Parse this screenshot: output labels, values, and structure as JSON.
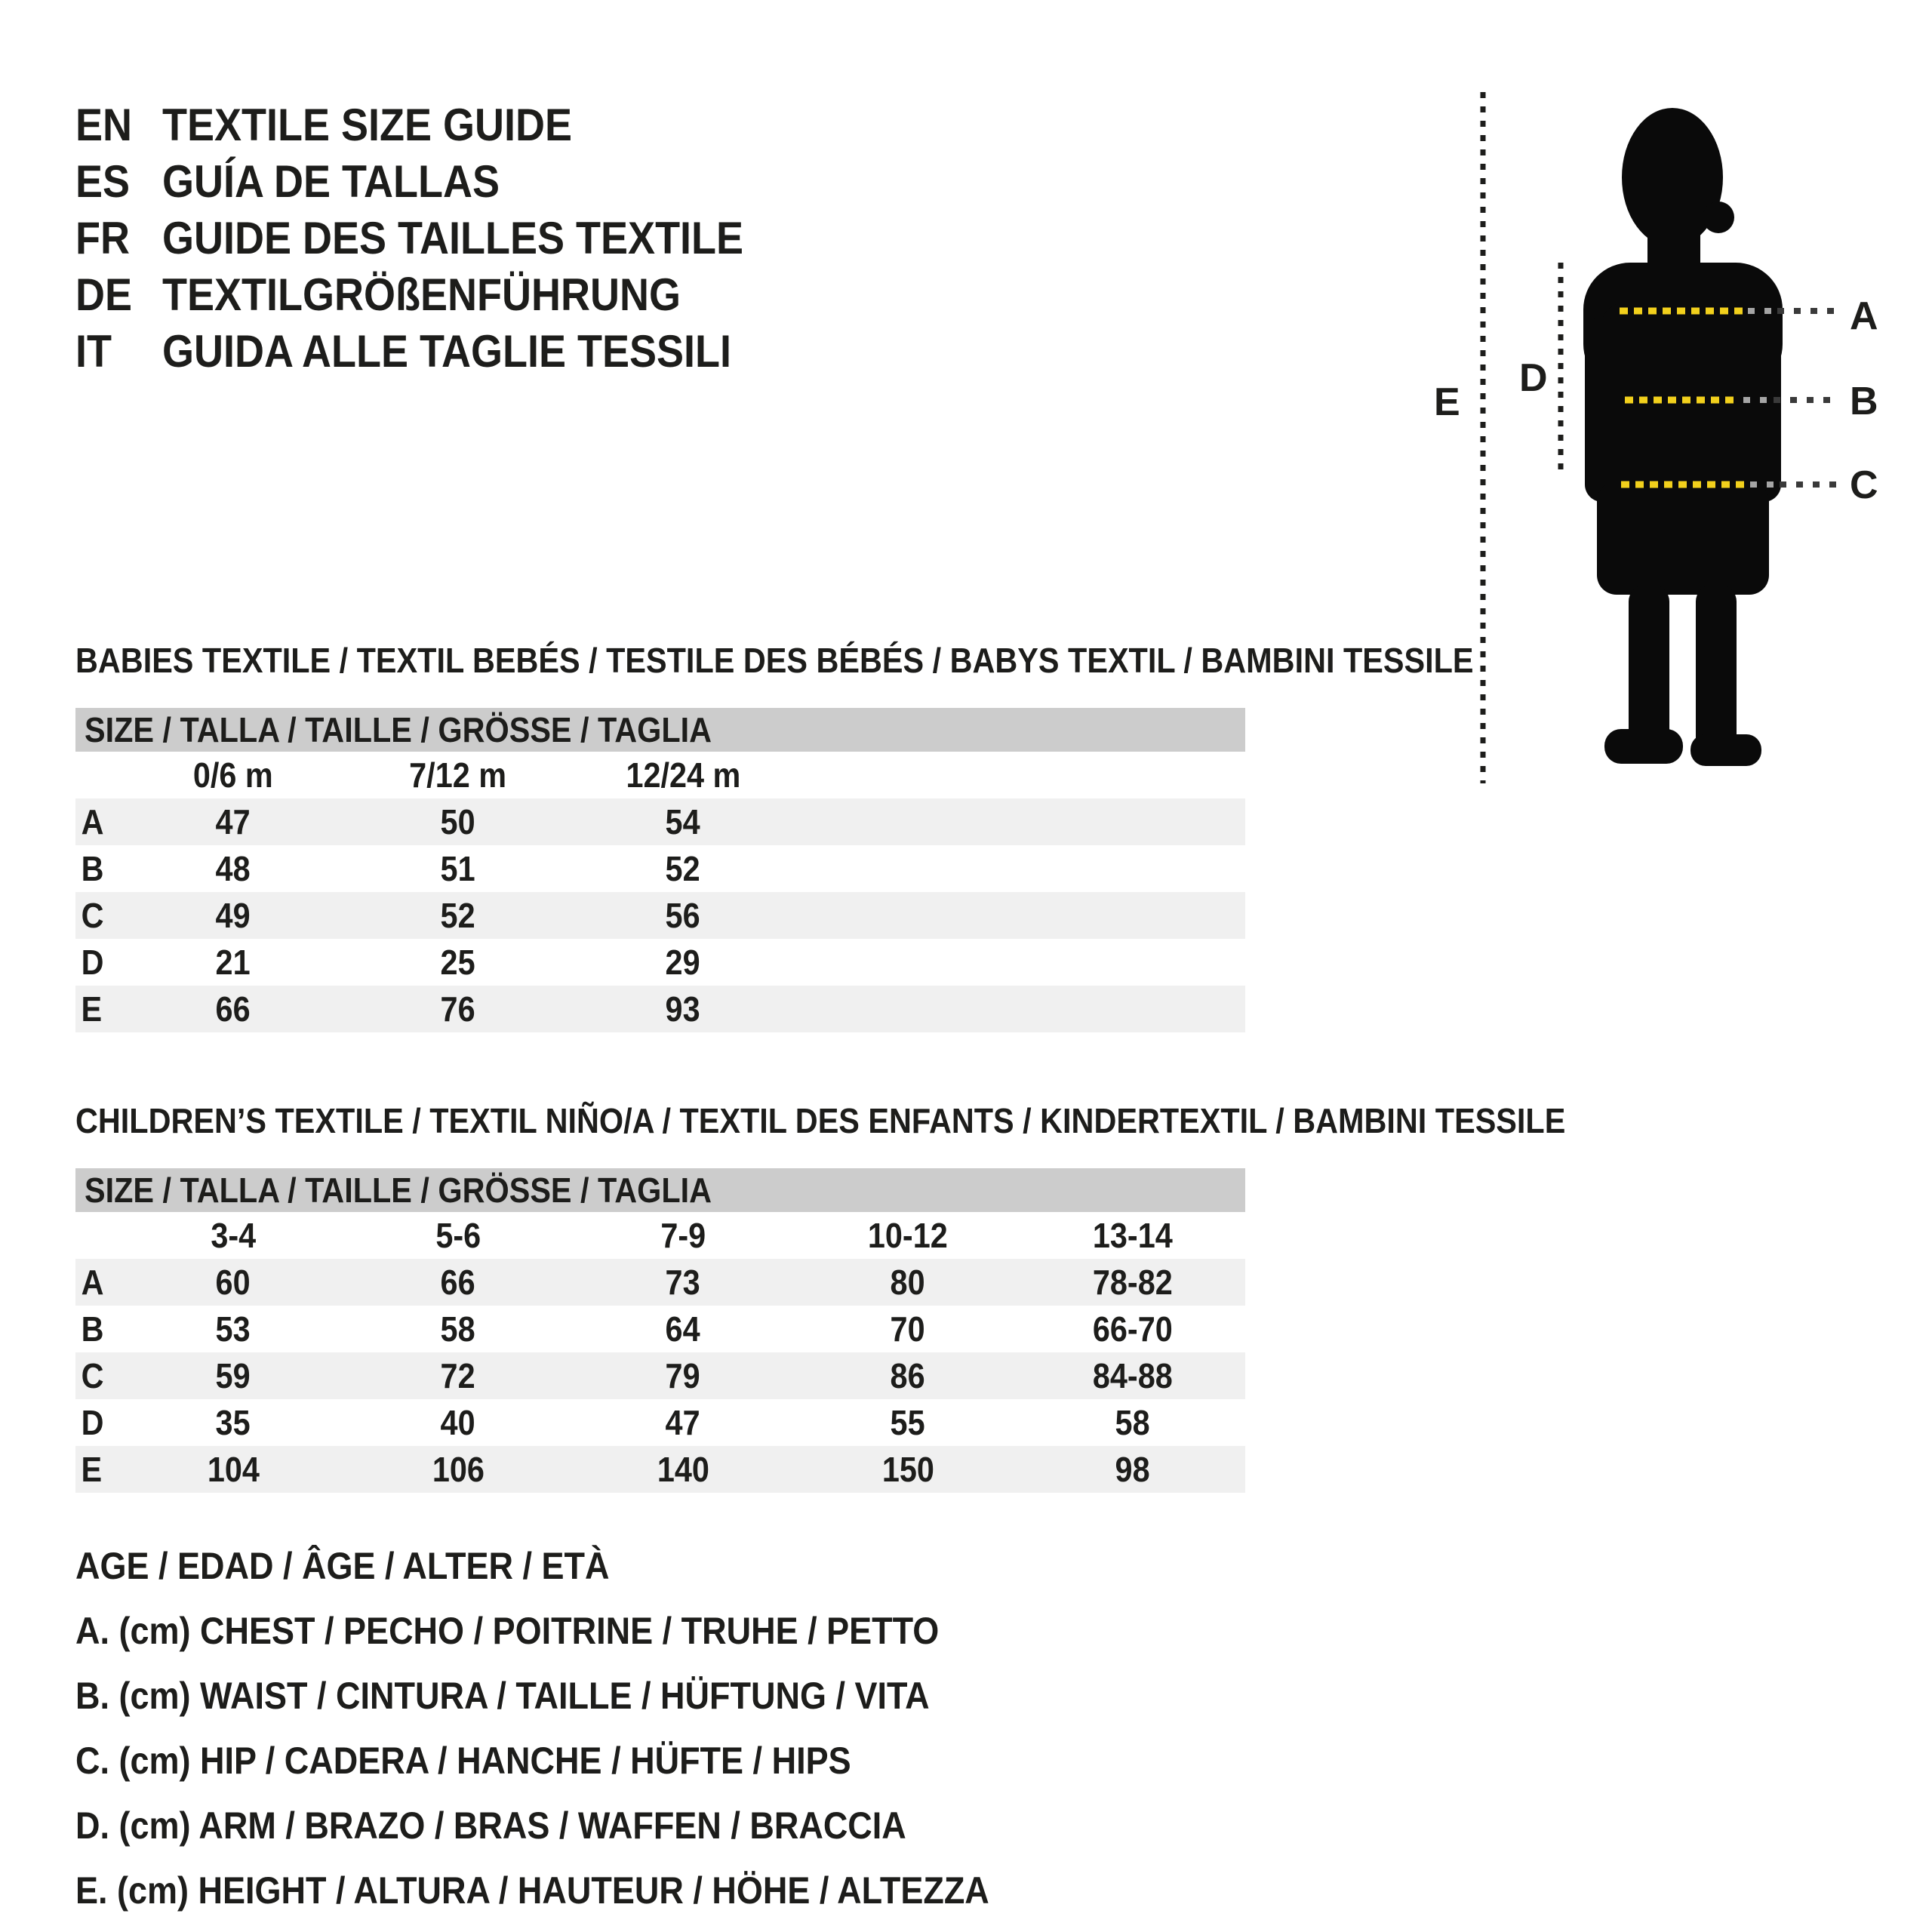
{
  "colors": {
    "ink": "#1d1d1b",
    "header_bar": "#cccccc",
    "row_alt": "#f0f0f0",
    "yellow_dash": "#f2d01c",
    "silhouette": "#0a0a0a",
    "dot_dark": "#3a3a3a",
    "dot_gray": "#a5a5a5"
  },
  "languages": [
    {
      "code": "EN",
      "label": "TEXTILE SIZE GUIDE"
    },
    {
      "code": "ES",
      "label": "GUÍA DE TALLAS"
    },
    {
      "code": "FR",
      "label": "GUIDE DES TAILLES TEXTILE"
    },
    {
      "code": "DE",
      "label": "TEXTILGRÖßENFÜHRUNG"
    },
    {
      "code": "IT",
      "label": "GUIDA ALLE TAGLIE TESSILI"
    }
  ],
  "figure": {
    "a": "A",
    "b": "B",
    "c": "C",
    "d": "D",
    "e": "E"
  },
  "babies": {
    "title": "BABIES TEXTILE / TEXTIL BEBÉS / TESTILE DES BÉBÉS / BABYS TEXTIL / BAMBINI TESSILE",
    "table": {
      "header": "SIZE / TALLA / TAILLE / GRÖSSE / TAGLIA",
      "columns": [
        "0/6 m",
        "7/12 m",
        "12/24 m"
      ],
      "rows": [
        {
          "label": "A",
          "values": [
            "47",
            "50",
            "54"
          ]
        },
        {
          "label": "B",
          "values": [
            "48",
            "51",
            "52"
          ]
        },
        {
          "label": "C",
          "values": [
            "49",
            "52",
            "56"
          ]
        },
        {
          "label": "D",
          "values": [
            "21",
            "25",
            "29"
          ]
        },
        {
          "label": "E",
          "values": [
            "66",
            "76",
            "93"
          ]
        }
      ]
    }
  },
  "children": {
    "title": "CHILDREN’S TEXTILE / TEXTIL NIÑO/A / TEXTIL DES ENFANTS / KINDERTEXTIL / BAMBINI TESSILE",
    "table": {
      "header": "SIZE / TALLA / TAILLE / GRÖSSE / TAGLIA",
      "columns": [
        "3-4",
        "5-6",
        "7-9",
        "10-12",
        "13-14"
      ],
      "rows": [
        {
          "label": "A",
          "values": [
            "60",
            "66",
            "73",
            "80",
            "78-82"
          ]
        },
        {
          "label": "B",
          "values": [
            "53",
            "58",
            "64",
            "70",
            "66-70"
          ]
        },
        {
          "label": "C",
          "values": [
            "59",
            "72",
            "79",
            "86",
            "84-88"
          ]
        },
        {
          "label": "D",
          "values": [
            "35",
            "40",
            "47",
            "55",
            "58"
          ]
        },
        {
          "label": "E",
          "values": [
            "104",
            "106",
            "140",
            "150",
            "98"
          ]
        }
      ]
    }
  },
  "legend": [
    "AGE / EDAD / ÂGE / ALTER / ETÀ",
    "A. (cm) CHEST / PECHO / POITRINE / TRUHE / PETTO",
    "B. (cm) WAIST / CINTURA / TAILLE / HÜFTUNG / VITA",
    "C. (cm) HIP / CADERA / HANCHE / HÜFTE / HIPS",
    "D. (cm) ARM / BRAZO / BRAS / WAFFEN / BRACCIA",
    "E. (cm) HEIGHT / ALTURA / HAUTEUR / HÖHE / ALTEZZA"
  ]
}
